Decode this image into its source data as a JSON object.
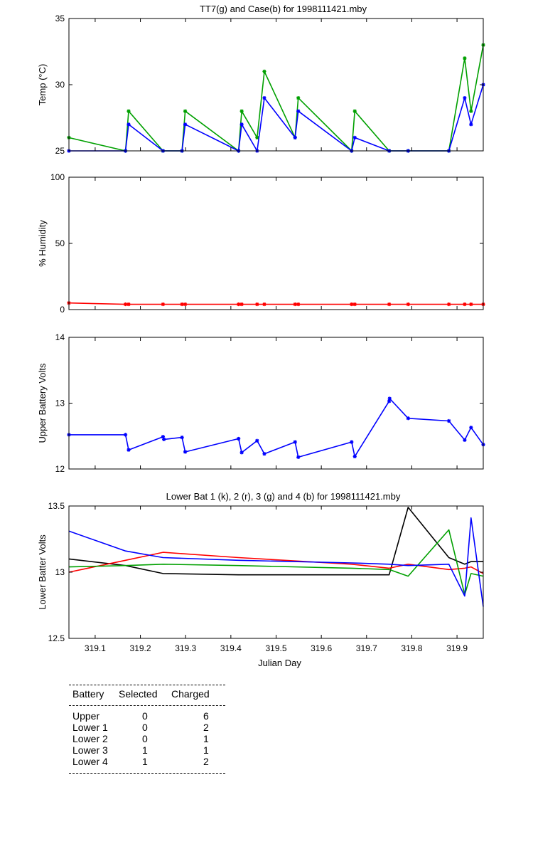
{
  "chart_data": [
    {
      "type": "line",
      "title": "TT7(g) and Case(b) for 1998111421.mby",
      "ylabel": "Temp  (°C)",
      "xlabel": "",
      "xlim": [
        319.042,
        319.958
      ],
      "ylim": [
        25,
        35
      ],
      "yticks": [
        25,
        30,
        35
      ],
      "grid": false,
      "series": [
        {
          "name": "TT7(g)",
          "color": "#00a000",
          "markers": true,
          "x": [
            319.042,
            319.167,
            319.174,
            319.25,
            319.292,
            319.299,
            319.417,
            319.424,
            319.458,
            319.474,
            319.542,
            319.549,
            319.667,
            319.674,
            319.75,
            319.792,
            319.882,
            319.917,
            319.931,
            319.958
          ],
          "y": [
            26,
            25,
            28,
            25,
            25,
            28,
            25,
            28,
            26,
            31,
            26,
            29,
            25,
            28,
            25,
            25,
            25,
            32,
            28,
            33
          ]
        },
        {
          "name": "Case(b)",
          "color": "#0000ff",
          "markers": true,
          "x": [
            319.042,
            319.167,
            319.174,
            319.25,
            319.292,
            319.299,
            319.417,
            319.424,
            319.458,
            319.474,
            319.542,
            319.549,
            319.667,
            319.674,
            319.75,
            319.792,
            319.882,
            319.917,
            319.931,
            319.958
          ],
          "y": [
            25,
            25,
            27,
            25,
            25,
            27,
            25,
            27,
            25,
            29,
            26,
            28,
            25,
            26,
            25,
            25,
            25,
            29,
            27,
            30
          ]
        }
      ]
    },
    {
      "type": "line",
      "title": "",
      "ylabel": "% Humidity",
      "xlabel": "",
      "xlim": [
        319.042,
        319.958
      ],
      "ylim": [
        0,
        100
      ],
      "yticks": [
        0,
        50,
        100
      ],
      "grid": false,
      "series": [
        {
          "name": "",
          "color": "#ff0000",
          "markers": true,
          "x": [
            319.042,
            319.167,
            319.174,
            319.25,
            319.292,
            319.299,
            319.417,
            319.424,
            319.458,
            319.474,
            319.542,
            319.549,
            319.667,
            319.674,
            319.75,
            319.792,
            319.882,
            319.917,
            319.931,
            319.958
          ],
          "y": [
            5,
            4,
            4,
            4,
            4,
            4,
            4,
            4,
            4,
            4,
            4,
            4,
            4,
            4,
            4,
            4,
            4,
            4,
            4,
            4
          ]
        }
      ]
    },
    {
      "type": "line",
      "title": "",
      "ylabel": "Upper Battery Volts",
      "xlabel": "",
      "xlim": [
        319.042,
        319.958
      ],
      "ylim": [
        12,
        14
      ],
      "yticks": [
        12,
        13,
        14
      ],
      "grid": false,
      "series": [
        {
          "name": "",
          "color": "#0000ff",
          "markers": true,
          "x": [
            319.042,
            319.167,
            319.174,
            319.25,
            319.252,
            319.292,
            319.299,
            319.417,
            319.424,
            319.458,
            319.474,
            319.542,
            319.549,
            319.667,
            319.674,
            319.75,
            319.751,
            319.792,
            319.882,
            319.917,
            319.931,
            319.958
          ],
          "y": [
            12.52,
            12.52,
            12.29,
            12.49,
            12.45,
            12.48,
            12.26,
            12.46,
            12.25,
            12.43,
            12.23,
            12.41,
            12.18,
            12.41,
            12.19,
            13.03,
            13.07,
            12.77,
            12.73,
            12.44,
            12.63,
            12.37
          ]
        }
      ]
    },
    {
      "type": "line",
      "title": "Lower Bat 1 (k), 2 (r), 3 (g) and 4 (b) for 1998111421.mby",
      "ylabel": "Lower Batter Volts",
      "xlabel": "Julian Day",
      "xlim": [
        319.042,
        319.958
      ],
      "ylim": [
        12.5,
        13.5
      ],
      "yticks": [
        12.5,
        13,
        13.5
      ],
      "xticks": [
        "319.1",
        "319.2",
        "319.3",
        "319.4",
        "319.5",
        "319.6",
        "319.7",
        "319.8",
        "319.9"
      ],
      "grid": false,
      "series": [
        {
          "name": "1 (k)",
          "color": "#000000",
          "markers": false,
          "x": [
            319.042,
            319.167,
            319.25,
            319.417,
            319.667,
            319.75,
            319.792,
            319.882,
            319.917,
            319.931,
            319.958
          ],
          "y": [
            13.1,
            13.05,
            12.99,
            12.98,
            12.98,
            12.98,
            13.49,
            13.11,
            13.06,
            13.08,
            13.08
          ]
        },
        {
          "name": "2 (r)",
          "color": "#ff0000",
          "markers": false,
          "x": [
            319.042,
            319.167,
            319.25,
            319.417,
            319.667,
            319.75,
            319.792,
            319.882,
            319.917,
            319.931,
            319.958
          ],
          "y": [
            13.0,
            13.09,
            13.15,
            13.11,
            13.06,
            13.03,
            13.06,
            13.02,
            13.03,
            13.04,
            12.99
          ]
        },
        {
          "name": "3 (g)",
          "color": "#00a000",
          "markers": false,
          "x": [
            319.042,
            319.167,
            319.25,
            319.417,
            319.667,
            319.75,
            319.792,
            319.882,
            319.917,
            319.931,
            319.958
          ],
          "y": [
            13.04,
            13.05,
            13.06,
            13.05,
            13.03,
            13.02,
            12.97,
            13.32,
            12.83,
            12.99,
            12.97
          ]
        },
        {
          "name": "4 (b)",
          "color": "#0000ff",
          "markers": false,
          "x": [
            319.042,
            319.167,
            319.25,
            319.417,
            319.667,
            319.75,
            319.792,
            319.882,
            319.917,
            319.931,
            319.958
          ],
          "y": [
            13.31,
            13.16,
            13.11,
            13.09,
            13.07,
            13.06,
            13.05,
            13.06,
            12.82,
            13.41,
            12.74
          ]
        }
      ]
    }
  ],
  "battery_table": {
    "headers": [
      "Battery",
      "Selected",
      "Charged"
    ],
    "rows": [
      {
        "battery": "Upper",
        "selected": "0",
        "charged": "6"
      },
      {
        "battery": "Lower 1",
        "selected": "0",
        "charged": "2"
      },
      {
        "battery": "Lower 2",
        "selected": "0",
        "charged": "1"
      },
      {
        "battery": "Lower 3",
        "selected": "1",
        "charged": "1"
      },
      {
        "battery": "Lower 4",
        "selected": "1",
        "charged": "2"
      }
    ]
  }
}
